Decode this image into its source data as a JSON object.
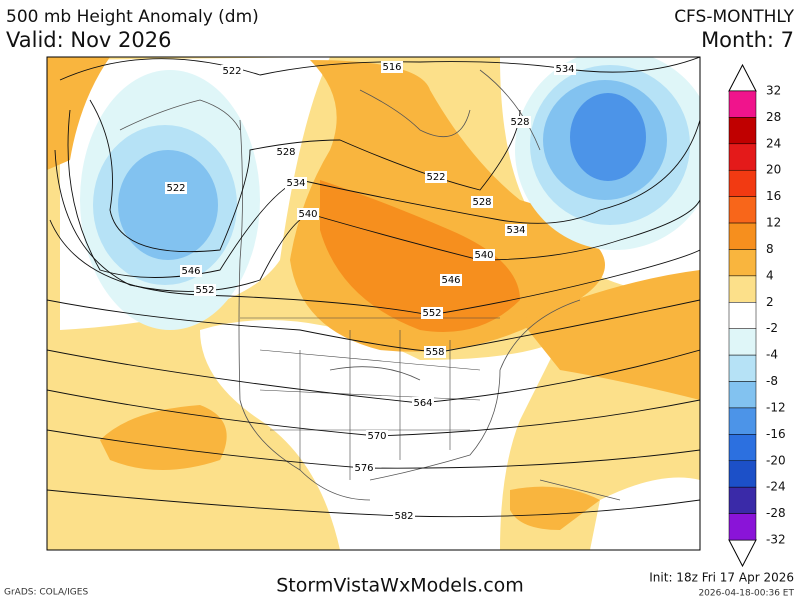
{
  "header": {
    "title": "500 mb Height Anomaly (dm)",
    "valid": "Valid: Nov 2026",
    "model": "CFS-MONTHLY",
    "month": "Month: 7"
  },
  "colorbar": {
    "levels": [
      32,
      28,
      24,
      20,
      16,
      12,
      8,
      4,
      2,
      -2,
      -4,
      -8,
      -12,
      -16,
      -20,
      -24,
      -28,
      -32
    ],
    "colors": [
      "#f0148c",
      "#c00000",
      "#e41a1a",
      "#f23a12",
      "#f8661a",
      "#f68f1e",
      "#f9b53e",
      "#fce08a",
      "#ffffff",
      "#dff6f8",
      "#b6e2f6",
      "#82c2f0",
      "#4c94e8",
      "#2c70e0",
      "#1c50c8",
      "#3a2aa8",
      "#8a14d8"
    ]
  },
  "contour_labels": [
    522,
    516,
    534,
    528,
    528,
    522,
    534,
    522,
    540,
    528,
    534,
    540,
    546,
    546,
    552,
    552,
    558,
    564,
    570,
    576,
    582
  ],
  "footer": {
    "grads": "GrADS: COLA/IGES",
    "site": "StormVistaWxModels.com",
    "init": "Init: 18z Fri 17 Apr 2026",
    "stamp": "2026-04-18-00:36 ET"
  }
}
